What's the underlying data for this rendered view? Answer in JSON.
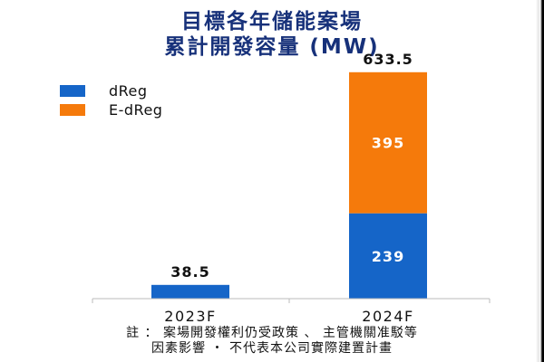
{
  "title_lines": [
    "目標各年儲能案場",
    "累計開發容量 (MW)"
  ],
  "note_lines": [
    "註 ： 案場開發權利仍受政策 、 主管機關准駁等",
    "因素影響 ・ 不代表本公司實際建置計畫"
  ],
  "colors": {
    "title": "#17317a",
    "dReg": "#1565c8",
    "E-dReg": "#f57a0b",
    "axis": "#bbbbbb",
    "inner_label": "#ffffff"
  },
  "chart_data": {
    "type": "bar",
    "stacked": true,
    "categories": [
      "2023F",
      "2024F"
    ],
    "series": [
      {
        "name": "dReg",
        "values": [
          38.5,
          239
        ]
      },
      {
        "name": "E-dReg",
        "values": [
          0,
          395
        ]
      }
    ],
    "totals": [
      38.5,
      633.5
    ],
    "total_labels": [
      "38.5",
      "633.5"
    ],
    "segment_labels": [
      {
        "category": "2024F",
        "series": "dReg",
        "text": "239"
      },
      {
        "category": "2024F",
        "series": "E-dReg",
        "text": "395"
      }
    ],
    "ylim": [
      0,
      633.5
    ],
    "grid": false,
    "legend_position": "top-left"
  }
}
